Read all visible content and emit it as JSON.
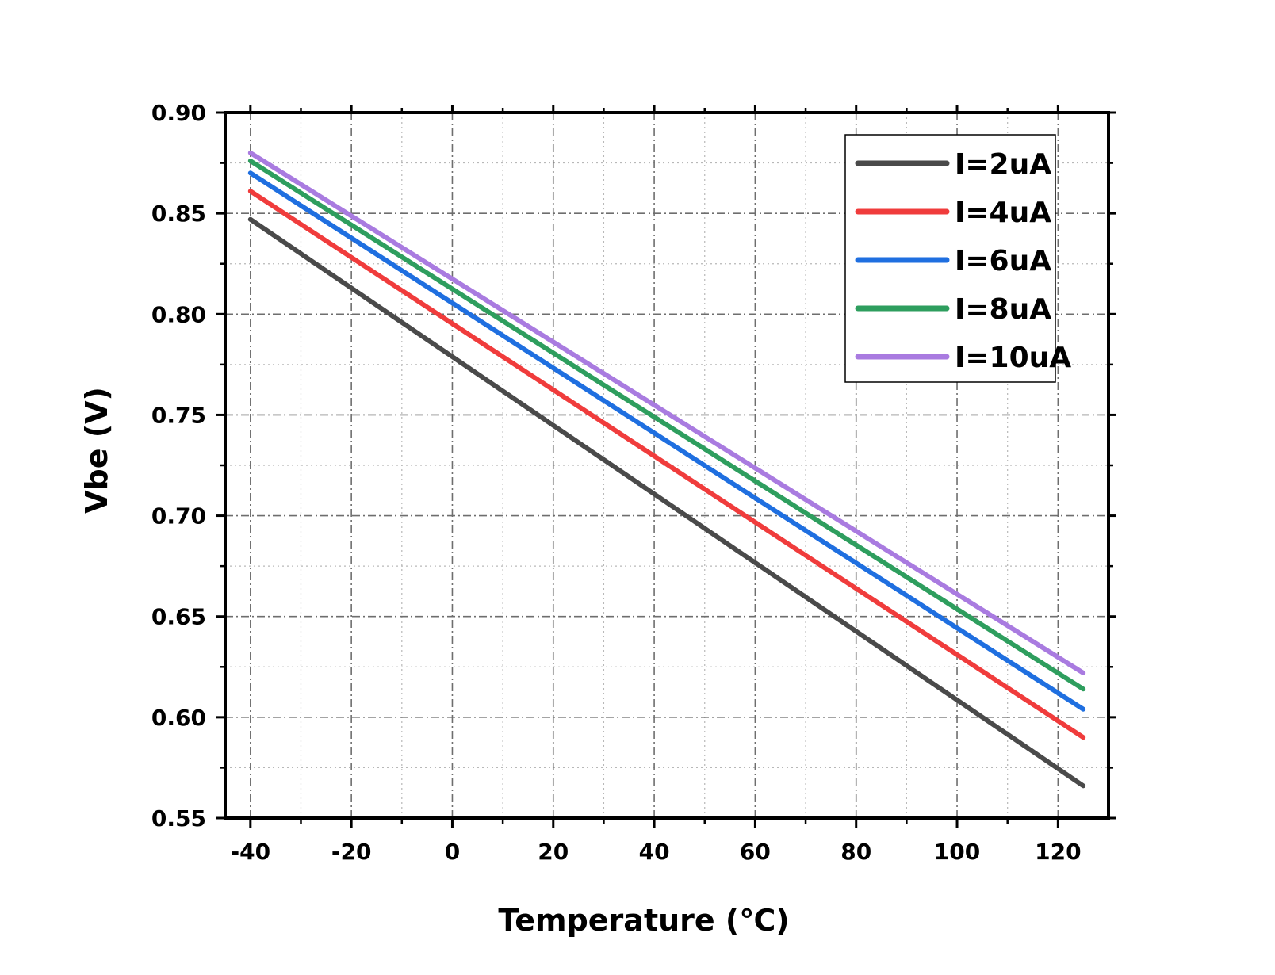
{
  "chart_data": {
    "type": "line",
    "xlabel": "Temperature (℃)",
    "ylabel": "Vbe (V)",
    "xlim": [
      -45,
      130
    ],
    "ylim": [
      0.55,
      0.9
    ],
    "xticks": [
      -40,
      -20,
      0,
      20,
      40,
      60,
      80,
      100,
      120
    ],
    "xtick_labels": [
      "-40",
      "-20",
      "0",
      "20",
      "40",
      "60",
      "80",
      "100",
      "120"
    ],
    "yticks": [
      0.55,
      0.6,
      0.65,
      0.7,
      0.75,
      0.8,
      0.85,
      0.9
    ],
    "ytick_labels": [
      "0.55",
      "0.60",
      "0.65",
      "0.70",
      "0.75",
      "0.80",
      "0.85",
      "0.90"
    ],
    "grid": true,
    "legend_position": "top-right",
    "series": [
      {
        "name": "I=2uA",
        "color": "#4a4a4a",
        "x": [
          -40,
          125
        ],
        "y": [
          0.847,
          0.566
        ]
      },
      {
        "name": "I=4uA",
        "color": "#f03c3c",
        "x": [
          -40,
          125
        ],
        "y": [
          0.861,
          0.59
        ]
      },
      {
        "name": "I=6uA",
        "color": "#1f6fe0",
        "x": [
          -40,
          125
        ],
        "y": [
          0.87,
          0.604
        ]
      },
      {
        "name": "I=8uA",
        "color": "#2e9e5e",
        "x": [
          -40,
          125
        ],
        "y": [
          0.876,
          0.614
        ]
      },
      {
        "name": "I=10uA",
        "color": "#a97be0",
        "x": [
          -40,
          125
        ],
        "y": [
          0.88,
          0.622
        ]
      }
    ]
  }
}
